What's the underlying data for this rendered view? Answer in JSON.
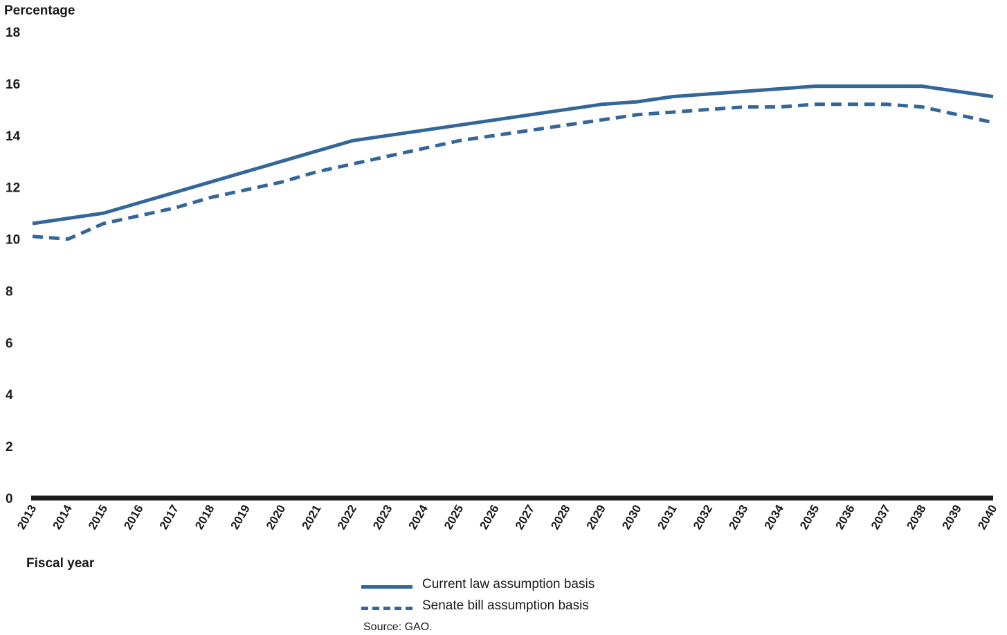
{
  "chart_data": {
    "type": "line",
    "ylabel": "Percentage",
    "xlabel": "Fiscal year",
    "ylim": [
      0,
      18
    ],
    "yticks": [
      0,
      2,
      4,
      6,
      8,
      10,
      12,
      14,
      16,
      18
    ],
    "x": [
      "2013",
      "2014",
      "2015",
      "2016",
      "2017",
      "2018",
      "2019",
      "2020",
      "2021",
      "2022",
      "2023",
      "2024",
      "2025",
      "2026",
      "2027",
      "2028",
      "2029",
      "2030",
      "2031",
      "2032",
      "2033",
      "2034",
      "2035",
      "2036",
      "2037",
      "2038",
      "2039",
      "2040"
    ],
    "series": [
      {
        "name": "Current law assumption basis",
        "style": "solid",
        "color": "#336699",
        "values": [
          10.6,
          10.8,
          11.0,
          11.4,
          11.8,
          12.2,
          12.6,
          13.0,
          13.4,
          13.8,
          14.0,
          14.2,
          14.4,
          14.6,
          14.8,
          15.0,
          15.2,
          15.3,
          15.5,
          15.6,
          15.7,
          15.8,
          15.9,
          15.9,
          15.9,
          15.9,
          15.7,
          15.5
        ]
      },
      {
        "name": "Senate bill assumption basis",
        "style": "dashed",
        "color": "#336699",
        "values": [
          10.1,
          10.0,
          10.6,
          10.9,
          11.2,
          11.6,
          11.9,
          12.2,
          12.6,
          12.9,
          13.2,
          13.5,
          13.8,
          14.0,
          14.2,
          14.4,
          14.6,
          14.8,
          14.9,
          15.0,
          15.1,
          15.1,
          15.2,
          15.2,
          15.2,
          15.1,
          14.8,
          14.5
        ]
      }
    ],
    "grid": false,
    "legend_position": "bottom-center"
  },
  "source": "Source: GAO.",
  "colors": {
    "series": "#336699",
    "axis": "#1a1a1a"
  }
}
